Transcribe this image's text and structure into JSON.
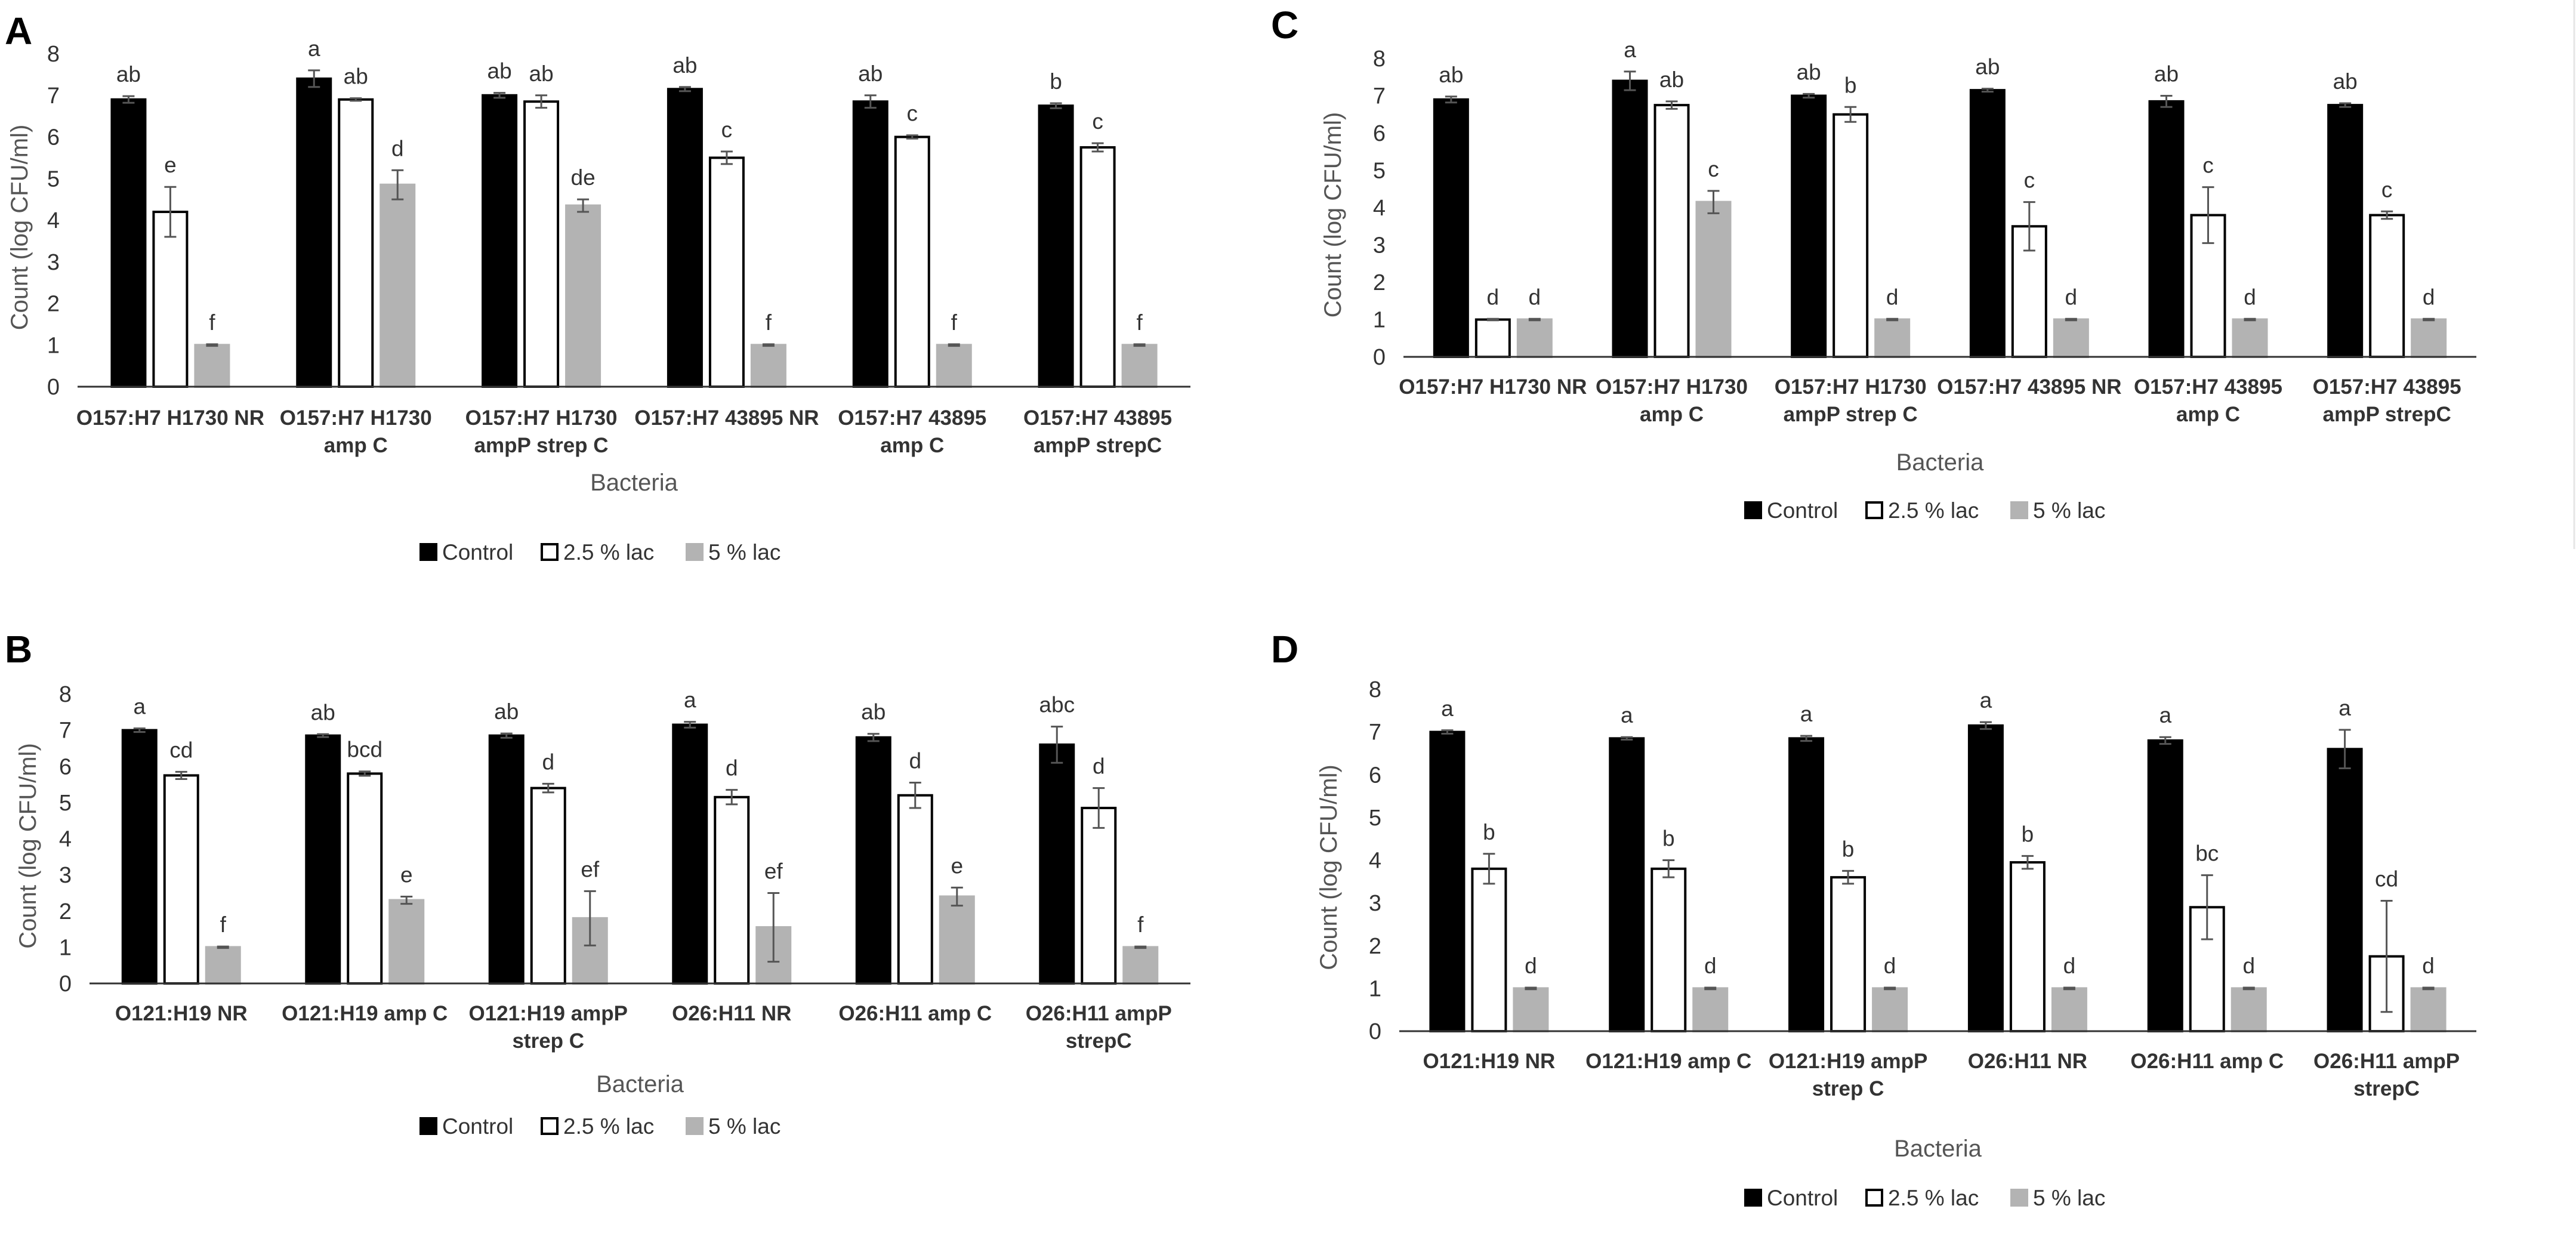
{
  "legend": [
    "Control",
    "2.5 % lac",
    "5 % lac"
  ],
  "colors": {
    "control": "#000000",
    "lac25": "#ffffff",
    "lac5": "#b3b3b3",
    "axis": "#333333",
    "errorbar": "#555555"
  },
  "chart_data": [
    {
      "id": "A",
      "type": "bar",
      "panel_label": "A",
      "ylabel": "Count (log CFU/ml)",
      "xlabel": "Bacteria",
      "ylim": [
        0,
        8
      ],
      "yticks": [
        "0",
        "1",
        "2",
        "3",
        "4",
        "5",
        "6",
        "7",
        "8"
      ],
      "categories": [
        [
          "O157:H7 H1730 NR"
        ],
        [
          "O157:H7 H1730",
          "amp C"
        ],
        [
          "O157:H7 H1730",
          "ampP strep C"
        ],
        [
          "O157:H7 43895 NR"
        ],
        [
          "O157:H7 43895",
          "amp C"
        ],
        [
          "O157:H7 43895",
          "ampP strepC"
        ]
      ],
      "series": [
        {
          "name": "Control",
          "values": [
            6.9,
            7.4,
            7.0,
            7.15,
            6.85,
            6.75
          ],
          "errors": [
            0.08,
            0.2,
            0.06,
            0.05,
            0.15,
            0.06
          ],
          "labels": [
            "ab",
            "a",
            "ab",
            "ab",
            "ab",
            "b"
          ]
        },
        {
          "name": "2.5 % lac",
          "values": [
            4.2,
            6.9,
            6.85,
            5.5,
            6.0,
            5.75
          ],
          "errors": [
            0.6,
            0.03,
            0.15,
            0.15,
            0.04,
            0.1
          ],
          "labels": [
            "e",
            "ab",
            "ab",
            "c",
            "c",
            "c"
          ]
        },
        {
          "name": "5 % lac",
          "values": [
            1.0,
            4.85,
            4.35,
            1.0,
            1.0,
            1.0
          ],
          "errors": [
            0.02,
            0.35,
            0.15,
            0.02,
            0.02,
            0.02
          ],
          "labels": [
            "f",
            "d",
            "de",
            "f",
            "f",
            "f"
          ]
        }
      ]
    },
    {
      "id": "B",
      "type": "bar",
      "panel_label": "B",
      "ylabel": "Count (log CFU/ml)",
      "xlabel": "Bacteria",
      "ylim": [
        0,
        8
      ],
      "yticks": [
        "0",
        "1",
        "2",
        "3",
        "4",
        "5",
        "6",
        "7",
        "8"
      ],
      "categories": [
        [
          "O121:H19 NR"
        ],
        [
          "O121:H19 amp C"
        ],
        [
          "O121:H19 ampP",
          "strep C"
        ],
        [
          "O26:H11 NR"
        ],
        [
          "O26:H11 amp C"
        ],
        [
          "O26:H11 ampP",
          "strepC"
        ]
      ],
      "series": [
        {
          "name": "Control",
          "values": [
            7.0,
            6.85,
            6.85,
            7.15,
            6.8,
            6.6
          ],
          "errors": [
            0.05,
            0.04,
            0.06,
            0.08,
            0.1,
            0.5
          ],
          "labels": [
            "a",
            "ab",
            "ab",
            "a",
            "ab",
            "abc"
          ]
        },
        {
          "name": "2.5 % lac",
          "values": [
            5.75,
            5.8,
            5.4,
            5.15,
            5.2,
            4.85
          ],
          "errors": [
            0.1,
            0.06,
            0.12,
            0.2,
            0.35,
            0.55
          ],
          "labels": [
            "cd",
            "bcd",
            "d",
            "d",
            "d",
            "d"
          ]
        },
        {
          "name": "5 % lac",
          "values": [
            1.0,
            2.3,
            1.8,
            1.55,
            2.4,
            1.0
          ],
          "errors": [
            0.02,
            0.1,
            0.75,
            0.95,
            0.25,
            0.02
          ],
          "labels": [
            "f",
            "e",
            "ef",
            "ef",
            "e",
            "f"
          ]
        }
      ]
    },
    {
      "id": "C",
      "type": "bar",
      "panel_label": "C",
      "ylabel": "Count (log CFU/ml)",
      "xlabel": "Bacteria",
      "ylim": [
        0,
        8
      ],
      "yticks": [
        "0",
        "1",
        "2",
        "3",
        "4",
        "5",
        "6",
        "7",
        "8"
      ],
      "categories": [
        [
          "O157:H7 H1730 NR"
        ],
        [
          "O157:H7 H1730",
          "amp C"
        ],
        [
          "O157:H7 H1730",
          "ampP strep C"
        ],
        [
          "O157:H7 43895 NR"
        ],
        [
          "O157:H7 43895",
          "amp C"
        ],
        [
          "O157:H7 43895",
          "ampP strepC"
        ]
      ],
      "series": [
        {
          "name": "Control",
          "values": [
            6.9,
            7.4,
            7.0,
            7.15,
            6.85,
            6.75
          ],
          "errors": [
            0.08,
            0.25,
            0.05,
            0.04,
            0.15,
            0.05
          ],
          "labels": [
            "ab",
            "a",
            "ab",
            "ab",
            "ab",
            "ab"
          ]
        },
        {
          "name": "2.5 % lac",
          "values": [
            1.0,
            6.75,
            6.5,
            3.5,
            3.8,
            3.8
          ],
          "errors": [
            0.02,
            0.1,
            0.2,
            0.65,
            0.75,
            0.1
          ],
          "labels": [
            "d",
            "ab",
            "b",
            "c",
            "c",
            "c"
          ]
        },
        {
          "name": "5 % lac",
          "values": [
            1.0,
            4.15,
            1.0,
            1.0,
            1.0,
            1.0
          ],
          "errors": [
            0.02,
            0.3,
            0.02,
            0.02,
            0.02,
            0.02
          ],
          "labels": [
            "d",
            "c",
            "d",
            "d",
            "d",
            "d"
          ]
        }
      ]
    },
    {
      "id": "D",
      "type": "bar",
      "panel_label": "D",
      "ylabel": "Count (log CFU/ml)",
      "xlabel": "Bacteria",
      "ylim": [
        0,
        8
      ],
      "yticks": [
        "0",
        "1",
        "2",
        "3",
        "4",
        "5",
        "6",
        "7",
        "8"
      ],
      "categories": [
        [
          "O121:H19 NR"
        ],
        [
          "O121:H19 amp C"
        ],
        [
          "O121:H19 ampP",
          "strep C"
        ],
        [
          "O26:H11 NR"
        ],
        [
          "O26:H11 amp C"
        ],
        [
          "O26:H11 ampP",
          "strepC"
        ]
      ],
      "series": [
        {
          "name": "Control",
          "values": [
            7.0,
            6.85,
            6.85,
            7.15,
            6.8,
            6.6
          ],
          "errors": [
            0.04,
            0.03,
            0.06,
            0.08,
            0.08,
            0.45
          ],
          "labels": [
            "a",
            "a",
            "a",
            "a",
            "a",
            "a"
          ]
        },
        {
          "name": "2.5 % lac",
          "values": [
            3.8,
            3.8,
            3.6,
            3.95,
            2.9,
            1.75
          ],
          "errors": [
            0.35,
            0.2,
            0.15,
            0.15,
            0.75,
            1.3
          ],
          "labels": [
            "b",
            "b",
            "b",
            "b",
            "bc",
            "cd"
          ]
        },
        {
          "name": "5 % lac",
          "values": [
            1.0,
            1.0,
            1.0,
            1.0,
            1.0,
            1.0
          ],
          "errors": [
            0.02,
            0.02,
            0.02,
            0.02,
            0.02,
            0.02
          ],
          "labels": [
            "d",
            "d",
            "d",
            "d",
            "d",
            "d"
          ]
        }
      ]
    }
  ]
}
